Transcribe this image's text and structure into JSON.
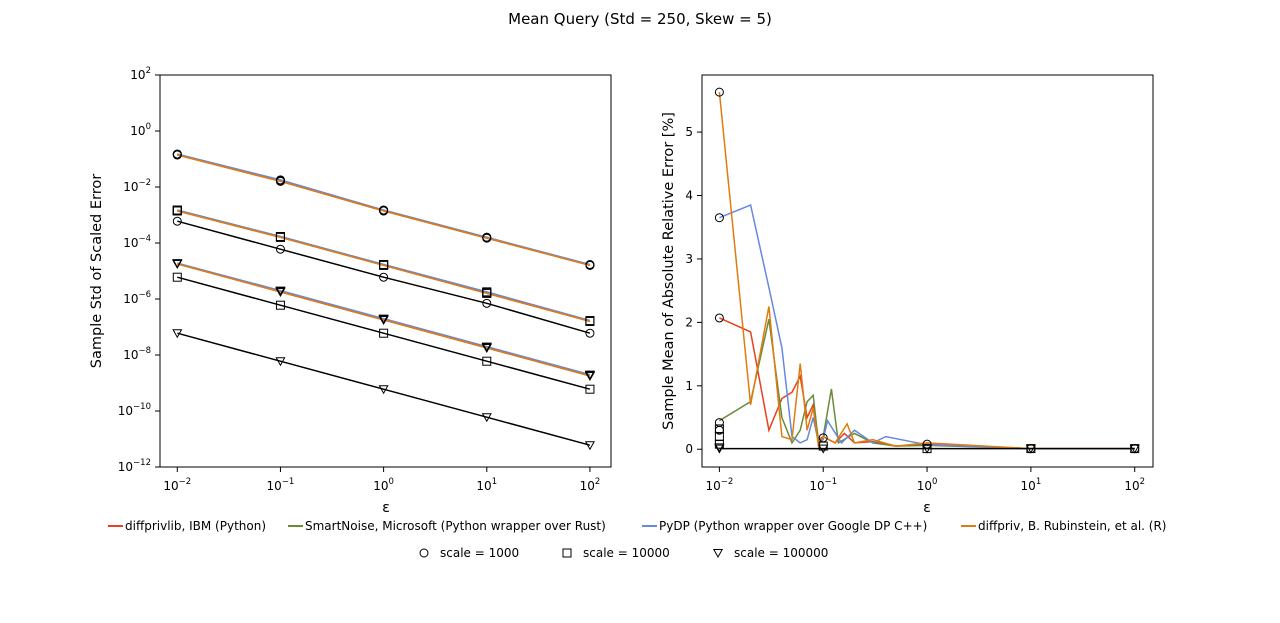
{
  "figure": {
    "title": "Mean Query (Std = 250, Skew = 5)"
  },
  "chart_data": [
    {
      "type": "line",
      "panel": "left",
      "xlabel": "ε",
      "ylabel": "Sample Std of Scaled Error",
      "xscale": "log",
      "yscale": "log",
      "xlim": [
        0.0068,
        160
      ],
      "ylim": [
        1e-12,
        100
      ],
      "xticks": [
        0.01,
        0.1,
        1,
        10,
        100
      ],
      "xtick_labels": [
        {
          "base": "10",
          "exp": "−2"
        },
        {
          "base": "10",
          "exp": "−1"
        },
        {
          "base": "10",
          "exp": "0"
        },
        {
          "base": "10",
          "exp": "1"
        },
        {
          "base": "10",
          "exp": "2"
        }
      ],
      "yticks": [
        1e-12,
        1e-10,
        1e-08,
        1e-06,
        0.0001,
        0.01,
        1,
        100
      ],
      "ytick_labels": [
        {
          "base": "10",
          "exp": "−12"
        },
        {
          "base": "10",
          "exp": "−10"
        },
        {
          "base": "10",
          "exp": "−8"
        },
        {
          "base": "10",
          "exp": "−6"
        },
        {
          "base": "10",
          "exp": "−4"
        },
        {
          "base": "10",
          "exp": "−2"
        },
        {
          "base": "10",
          "exp": "0"
        },
        {
          "base": "10",
          "exp": "2"
        }
      ],
      "x": [
        0.01,
        0.1,
        1,
        10,
        100
      ],
      "series": [
        {
          "name": "diffprivlib, IBM (Python)",
          "color": "#e8401c",
          "marker": "circle",
          "values": [
            0.14,
            0.016,
            0.0014,
            0.00015,
            1.6e-05
          ]
        },
        {
          "name": "SmartNoise, Microsoft (Python wrapper over Rust)",
          "color": "#6a8c3a",
          "marker": "circle",
          "values": [
            0.15,
            0.017,
            0.0015,
            0.00016,
            1.6e-05
          ]
        },
        {
          "name": "PyDP (Python wrapper over Google DP C++)",
          "color": "#6688dd",
          "marker": "circle",
          "values": [
            0.15,
            0.018,
            0.0015,
            0.00016,
            1.7e-05
          ]
        },
        {
          "name": "diffpriv, B. Rubinstein, et al. (R)",
          "color": "#e07b10",
          "marker": "circle",
          "values": [
            0.14,
            0.016,
            0.0014,
            0.00015,
            1.6e-05
          ]
        },
        {
          "name": "",
          "color": "#000000",
          "marker": "circle",
          "values": [
            0.0006,
            6e-05,
            6e-06,
            7e-07,
            6e-08
          ]
        },
        {
          "name": "diffprivlib, IBM (Python)",
          "color": "#e8401c",
          "marker": "square",
          "values": [
            0.0014,
            0.00016,
            1.6e-05,
            1.6e-06,
            1.6e-07
          ]
        },
        {
          "name": "SmartNoise, Microsoft (Python wrapper over Rust)",
          "color": "#6a8c3a",
          "marker": "square",
          "values": [
            0.0015,
            0.00017,
            1.7e-05,
            1.7e-06,
            1.6e-07
          ]
        },
        {
          "name": "PyDP (Python wrapper over Google DP C++)",
          "color": "#6688dd",
          "marker": "square",
          "values": [
            0.0015,
            0.00017,
            1.7e-05,
            1.8e-06,
            1.7e-07
          ]
        },
        {
          "name": "diffpriv, B. Rubinstein, et al. (R)",
          "color": "#e07b10",
          "marker": "square",
          "values": [
            0.0014,
            0.00016,
            1.6e-05,
            1.6e-06,
            1.6e-07
          ]
        },
        {
          "name": "",
          "color": "#000000",
          "marker": "square",
          "values": [
            6e-06,
            6e-07,
            6e-08,
            6e-09,
            6e-10
          ]
        },
        {
          "name": "diffprivlib, IBM (Python)",
          "color": "#e8401c",
          "marker": "triangle",
          "values": [
            1.8e-05,
            1.8e-06,
            1.8e-07,
            1.8e-08,
            1.8e-09
          ]
        },
        {
          "name": "SmartNoise, Microsoft (Python wrapper over Rust)",
          "color": "#6a8c3a",
          "marker": "triangle",
          "values": [
            1.9e-05,
            1.9e-06,
            1.9e-07,
            1.9e-08,
            1.9e-09
          ]
        },
        {
          "name": "PyDP (Python wrapper over Google DP C++)",
          "color": "#6688dd",
          "marker": "triangle",
          "values": [
            1.9e-05,
            2e-06,
            2e-07,
            2e-08,
            2e-09
          ]
        },
        {
          "name": "diffpriv, B. Rubinstein, et al. (R)",
          "color": "#e07b10",
          "marker": "triangle",
          "values": [
            1.8e-05,
            1.8e-06,
            1.8e-07,
            1.8e-08,
            1.8e-09
          ]
        },
        {
          "name": "",
          "color": "#000000",
          "marker": "triangle",
          "values": [
            6e-08,
            6e-09,
            6e-10,
            6e-11,
            6e-12
          ]
        }
      ]
    },
    {
      "type": "line",
      "panel": "right",
      "xlabel": "ε",
      "ylabel": "Sample Mean of Absolute Relative Error [%]",
      "xscale": "log",
      "yscale": "linear",
      "xlim": [
        0.0068,
        150
      ],
      "ylim": [
        -0.28,
        5.9
      ],
      "xticks": [
        0.01,
        0.1,
        1,
        10,
        100
      ],
      "xtick_labels": [
        {
          "base": "10",
          "exp": "−2"
        },
        {
          "base": "10",
          "exp": "−1"
        },
        {
          "base": "10",
          "exp": "0"
        },
        {
          "base": "10",
          "exp": "1"
        },
        {
          "base": "10",
          "exp": "2"
        }
      ],
      "yticks": [
        0,
        1,
        2,
        3,
        4,
        5
      ],
      "series": [
        {
          "name": "diffprivlib, IBM (Python)",
          "color": "#e8401c",
          "x": [
            0.01,
            0.02,
            0.03,
            0.04,
            0.05,
            0.06,
            0.07,
            0.08,
            0.09,
            0.1,
            0.13,
            0.16,
            0.2,
            0.3,
            0.5,
            1,
            10,
            100
          ],
          "values": [
            2.07,
            1.85,
            0.3,
            0.8,
            0.9,
            1.15,
            0.5,
            0.7,
            0.15,
            0.2,
            0.1,
            0.25,
            0.1,
            0.12,
            0.05,
            0.08,
            0.01,
            0.01
          ]
        },
        {
          "name": "SmartNoise, Microsoft (Python wrapper over Rust)",
          "color": "#6a8c3a",
          "x": [
            0.01,
            0.02,
            0.03,
            0.04,
            0.05,
            0.06,
            0.07,
            0.08,
            0.09,
            0.1,
            0.12,
            0.14,
            0.2,
            0.3,
            0.5,
            1,
            10,
            100
          ],
          "values": [
            0.45,
            0.75,
            2.05,
            0.5,
            0.1,
            0.3,
            0.75,
            0.85,
            0.1,
            0.2,
            0.95,
            0.1,
            0.25,
            0.1,
            0.05,
            0.06,
            0.01,
            0.01
          ]
        },
        {
          "name": "PyDP (Python wrapper over Google DP C++)",
          "color": "#6688dd",
          "x": [
            0.01,
            0.02,
            0.03,
            0.04,
            0.05,
            0.06,
            0.07,
            0.08,
            0.09,
            0.1,
            0.11,
            0.15,
            0.2,
            0.3,
            0.4,
            1,
            10,
            100
          ],
          "values": [
            3.65,
            3.85,
            2.55,
            1.6,
            0.2,
            0.1,
            0.15,
            0.5,
            0.1,
            0.15,
            0.45,
            0.1,
            0.3,
            0.1,
            0.2,
            0.07,
            0.01,
            0.01
          ]
        },
        {
          "name": "diffpriv, B. Rubinstein, et al. (R)",
          "color": "#e07b10",
          "x": [
            0.01,
            0.02,
            0.03,
            0.04,
            0.05,
            0.06,
            0.07,
            0.08,
            0.09,
            0.1,
            0.13,
            0.17,
            0.2,
            0.3,
            0.5,
            1,
            10,
            100
          ],
          "values": [
            5.63,
            0.7,
            2.25,
            0.2,
            0.15,
            1.35,
            0.3,
            0.65,
            0.05,
            0.2,
            0.1,
            0.4,
            0.1,
            0.15,
            0.05,
            0.1,
            0.01,
            0.01
          ]
        },
        {
          "name": "",
          "color": "#000000",
          "x": [
            0.01,
            0.1,
            1,
            10,
            100
          ],
          "values": [
            0.01,
            0.01,
            0.01,
            0.01,
            0.01
          ]
        }
      ],
      "markers": {
        "circle": {
          "x": [
            0.01,
            0.01,
            0.01,
            0.01,
            0.01,
            0.1,
            1,
            10,
            100
          ],
          "values": [
            5.63,
            3.65,
            2.07,
            0.42,
            0.3,
            0.18,
            0.08,
            0.01,
            0.01
          ]
        },
        "square": {
          "x": [
            0.01,
            0.01,
            0.01,
            0.1,
            1,
            10,
            100
          ],
          "values": [
            0.32,
            0.2,
            0.08,
            0.05,
            0.01,
            0.01,
            0.01
          ]
        },
        "triangle": {
          "x": [
            0.01,
            0.01,
            0.1,
            1,
            10,
            100
          ],
          "values": [
            0.03,
            0.01,
            0.01,
            0.01,
            0.01,
            0.01
          ]
        }
      }
    }
  ],
  "legend": {
    "placement": "bottom",
    "libraries": [
      {
        "label": "diffprivlib, IBM (Python)",
        "color": "#e8401c"
      },
      {
        "label": "SmartNoise, Microsoft (Python wrapper over Rust)",
        "color": "#6a8c3a"
      },
      {
        "label": "PyDP (Python wrapper over Google DP C++)",
        "color": "#6688dd"
      },
      {
        "label": "diffpriv, B. Rubinstein, et al. (R)",
        "color": "#e07b10"
      }
    ],
    "scales": [
      {
        "label": "scale = 1000",
        "marker": "circle"
      },
      {
        "label": "scale = 10000",
        "marker": "square"
      },
      {
        "label": "scale = 100000",
        "marker": "triangle"
      }
    ]
  }
}
